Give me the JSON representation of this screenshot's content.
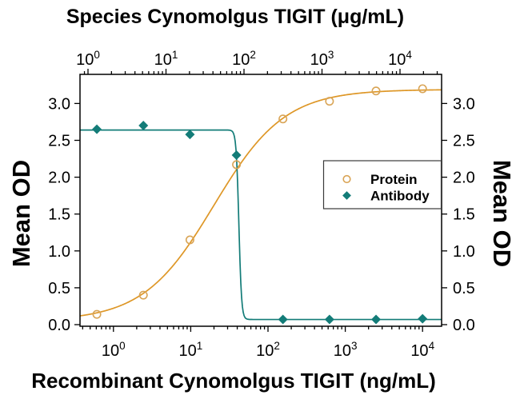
{
  "figure": {
    "background": "#ffffff",
    "text_color": "#000000"
  },
  "chart_data": {
    "type": "line",
    "description": "Dose-response binding curve (Protein) and neutralization curve (Antibody), log x-axes, dual Mean OD y-axes",
    "x_axis_top": {
      "label": "Species Cynomolgus TIGIT (μg/mL)",
      "scale": "log",
      "tick_base": "10",
      "tick_exponents": [
        0,
        1,
        2,
        3,
        4
      ]
    },
    "x_axis_bottom": {
      "label": "Recombinant Cynomolgus TIGIT (ng/mL)",
      "scale": "log",
      "tick_base": "10",
      "tick_exponents": [
        0,
        1,
        2,
        3,
        4
      ]
    },
    "y_axis": {
      "label": "Mean OD",
      "label_right": "Mean OD",
      "ticks": [
        0,
        0.5,
        1,
        1.5,
        2,
        2.5,
        3
      ],
      "tick_labels": [
        "0.0",
        "0.5",
        "1.0",
        "1.5",
        "2.0",
        "2.5",
        "3.0"
      ],
      "range": [
        0,
        3.4
      ],
      "grid": false
    },
    "series": [
      {
        "name": "Protein",
        "marker": "open-circle",
        "marker_color": "#D9A455",
        "line_color": "#DE9727",
        "response": "increasing",
        "x_ng_ml": [
          0.61,
          2.44,
          9.77,
          39.1,
          156,
          625,
          2500,
          10000
        ],
        "od": [
          0.14,
          0.4,
          1.15,
          2.17,
          2.79,
          3.03,
          3.17,
          3.2
        ],
        "fit_4pl": {
          "bottom": 0.05,
          "top": 3.19,
          "ec50": 20,
          "hill": 0.95
        }
      },
      {
        "name": "Antibody",
        "marker": "filled-diamond",
        "marker_color": "#137C78",
        "line_color": "#137C78",
        "response": "decreasing",
        "x_ng_ml": [
          0.61,
          2.44,
          9.77,
          39.1,
          156,
          625,
          2500,
          10000
        ],
        "od": [
          2.65,
          2.7,
          2.58,
          2.3,
          0.07,
          0.07,
          0.07,
          0.08
        ],
        "fit_4pl": {
          "bottom": 0.07,
          "top": 2.64,
          "ec50": 42,
          "hill": 25
        }
      }
    ],
    "legend": {
      "position": "middle-right",
      "items": [
        {
          "label": "Protein",
          "marker": "open-circle",
          "color": "#D9A455"
        },
        {
          "label": "Antibody",
          "marker": "filled-diamond",
          "color": "#137C78"
        }
      ]
    }
  }
}
